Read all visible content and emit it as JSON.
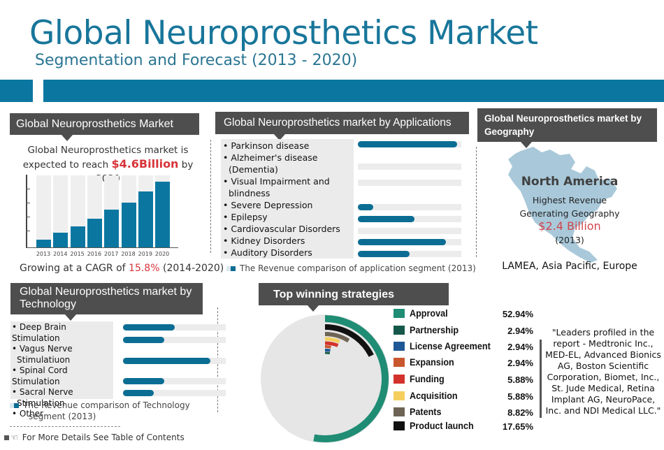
{
  "header": {
    "title": "Global Neuroprosthetics Market",
    "subtitle": "Segmentation and Forecast (2013 - 2020)",
    "banner_color": "#0b77a1"
  },
  "market": {
    "heading": "Global Neuroprosthetics Market",
    "line1": "Global Neuroprosthetics market is",
    "line2_prefix": "expected to reach ",
    "line2_highlight": "$4.6Billion",
    "line2_suffix": " by 2020",
    "cagr_prefix": "Growing at a CAGR of ",
    "cagr_value": "15.8%",
    "cagr_suffix": " (2014-2020)",
    "highlight_color": "#d7343a"
  },
  "applications": {
    "heading": "Global Neuroprosthetics market by Applications",
    "items": [
      {
        "label": "Parkinson disease",
        "wrap": "",
        "value": 96
      },
      {
        "label": "Alzheimer's disease",
        "wrap": "(Dementia)",
        "value": 0
      },
      {
        "label": "Visual Impairment and",
        "wrap": "blindness",
        "value": 0
      },
      {
        "label": "Severe Depression",
        "wrap": "",
        "value": 15
      },
      {
        "label": "Epilepsy",
        "wrap": "",
        "value": 55
      },
      {
        "label": "Cardiovascular Disorders",
        "wrap": "",
        "value": 0
      },
      {
        "label": "Kidney Disorders",
        "wrap": "",
        "value": 85
      },
      {
        "label": "Auditory Disorders",
        "wrap": "",
        "value": 50
      }
    ],
    "legend": "The Revenue comparison of application segment (2013)"
  },
  "geography": {
    "heading": "Global Neuroprosthetics market by Geography",
    "region": "North America",
    "line1": "Highest Revenue",
    "line2": "Generating Geography",
    "value": "$2.4 Billion",
    "year": "(2013)",
    "others": "LAMEA, Asia Pacific, Europe",
    "map_color": "#a9c9da"
  },
  "technology": {
    "heading": "Global Neuroprosthetics market by Technology",
    "items": [
      {
        "label": "Deep Brain Stimulation",
        "wrap": "",
        "value": 50
      },
      {
        "label": "Vagus Nerve",
        "wrap": "Stimulatiuon",
        "value": 40
      },
      {
        "label": "Spinal Cord Stimulation",
        "wrap": "",
        "value": 85
      },
      {
        "label": "Sacral Nerve",
        "wrap": "Stimulation",
        "value": 40
      },
      {
        "label": "Other",
        "wrap": "",
        "value": 30
      }
    ],
    "legend_line1": "The Revenue comparison of Technology",
    "legend_line2": "segment (2013)"
  },
  "strategies": {
    "heading": "Top winning strategies",
    "items": [
      {
        "label": "Approval",
        "value": "52.94%",
        "color": "#1f8c74"
      },
      {
        "label": "Partnership",
        "value": "2.94%",
        "color": "#15584a"
      },
      {
        "label": "License Agreement",
        "value": "2.94%",
        "color": "#1f5896"
      },
      {
        "label": "Expansion",
        "value": "2.94%",
        "color": "#c9572e"
      },
      {
        "label": " Funding",
        "value": "5.88%",
        "color": "#d3322c"
      },
      {
        "label": "Acquisition",
        "value": "5.88%",
        "color": "#f5cf5e"
      },
      {
        "label": " Patents",
        "value": "8.82%",
        "color": "#6e6455"
      },
      {
        "label": " Product launch",
        "value": "17.65%",
        "color": "#111111"
      }
    ]
  },
  "leaders": {
    "text": "\"Leaders profiled in the report  - Medtronic Inc., MED-EL, Advanced Bionics AG, Boston Scientific Corporation, Biomet, Inc., St. Jude Medical, Retina Implant AG, NeuroPace, Inc. and NDI Medical LLC.\""
  },
  "footer": {
    "more_details": "For More Details See Table of Contents"
  },
  "chart_data": [
    {
      "type": "bar",
      "title": "Global Neuroprosthetics Market",
      "categories": [
        "2013",
        "2014",
        "2015",
        "2016",
        "2017",
        "2018",
        "2019",
        "2020"
      ],
      "values": [
        11,
        20,
        29,
        40,
        52,
        62,
        78,
        91
      ],
      "xlabel": "",
      "ylabel": "",
      "ylim": [
        0,
        100
      ],
      "annotations": [
        "expected to reach $4.6Billion by 2020",
        "Growing at a CAGR of 15.8% (2014-2020)"
      ],
      "note": "relative bar heights (no numeric y tick labels shown)"
    },
    {
      "type": "bar",
      "orientation": "horizontal",
      "title": "Global Neuroprosthetics market by Applications",
      "categories": [
        "Parkinson disease",
        "Alzheimer's disease (Dementia)",
        "Visual Impairment and blindness",
        "Severe Depression",
        "Epilepsy",
        "Cardiovascular Disorders",
        "Kidney Disorders",
        "Auditory Disorders"
      ],
      "values": [
        96,
        0,
        0,
        15,
        55,
        0,
        85,
        50
      ],
      "legend": [
        "The Revenue comparison of application segment (2013)"
      ]
    },
    {
      "type": "bar",
      "orientation": "horizontal",
      "title": "Global Neuroprosthetics market by Technology",
      "categories": [
        "Deep Brain Stimulation",
        "Vagus Nerve Stimulatiuon",
        "Spinal Cord Stimulation",
        "Sacral Nerve Stimulation",
        "Other"
      ],
      "values": [
        50,
        40,
        85,
        40,
        30
      ],
      "legend": [
        "The Revenue comparison of Technology segment (2013)"
      ]
    },
    {
      "type": "pie",
      "style": "radial-bar",
      "title": "Top winning strategies",
      "categories": [
        "Approval",
        "Partnership",
        "License Agreement",
        "Expansion",
        "Funding",
        "Acquisition",
        "Patents",
        "Product launch"
      ],
      "values": [
        52.94,
        2.94,
        2.94,
        2.94,
        5.88,
        5.88,
        8.82,
        17.65
      ]
    }
  ]
}
